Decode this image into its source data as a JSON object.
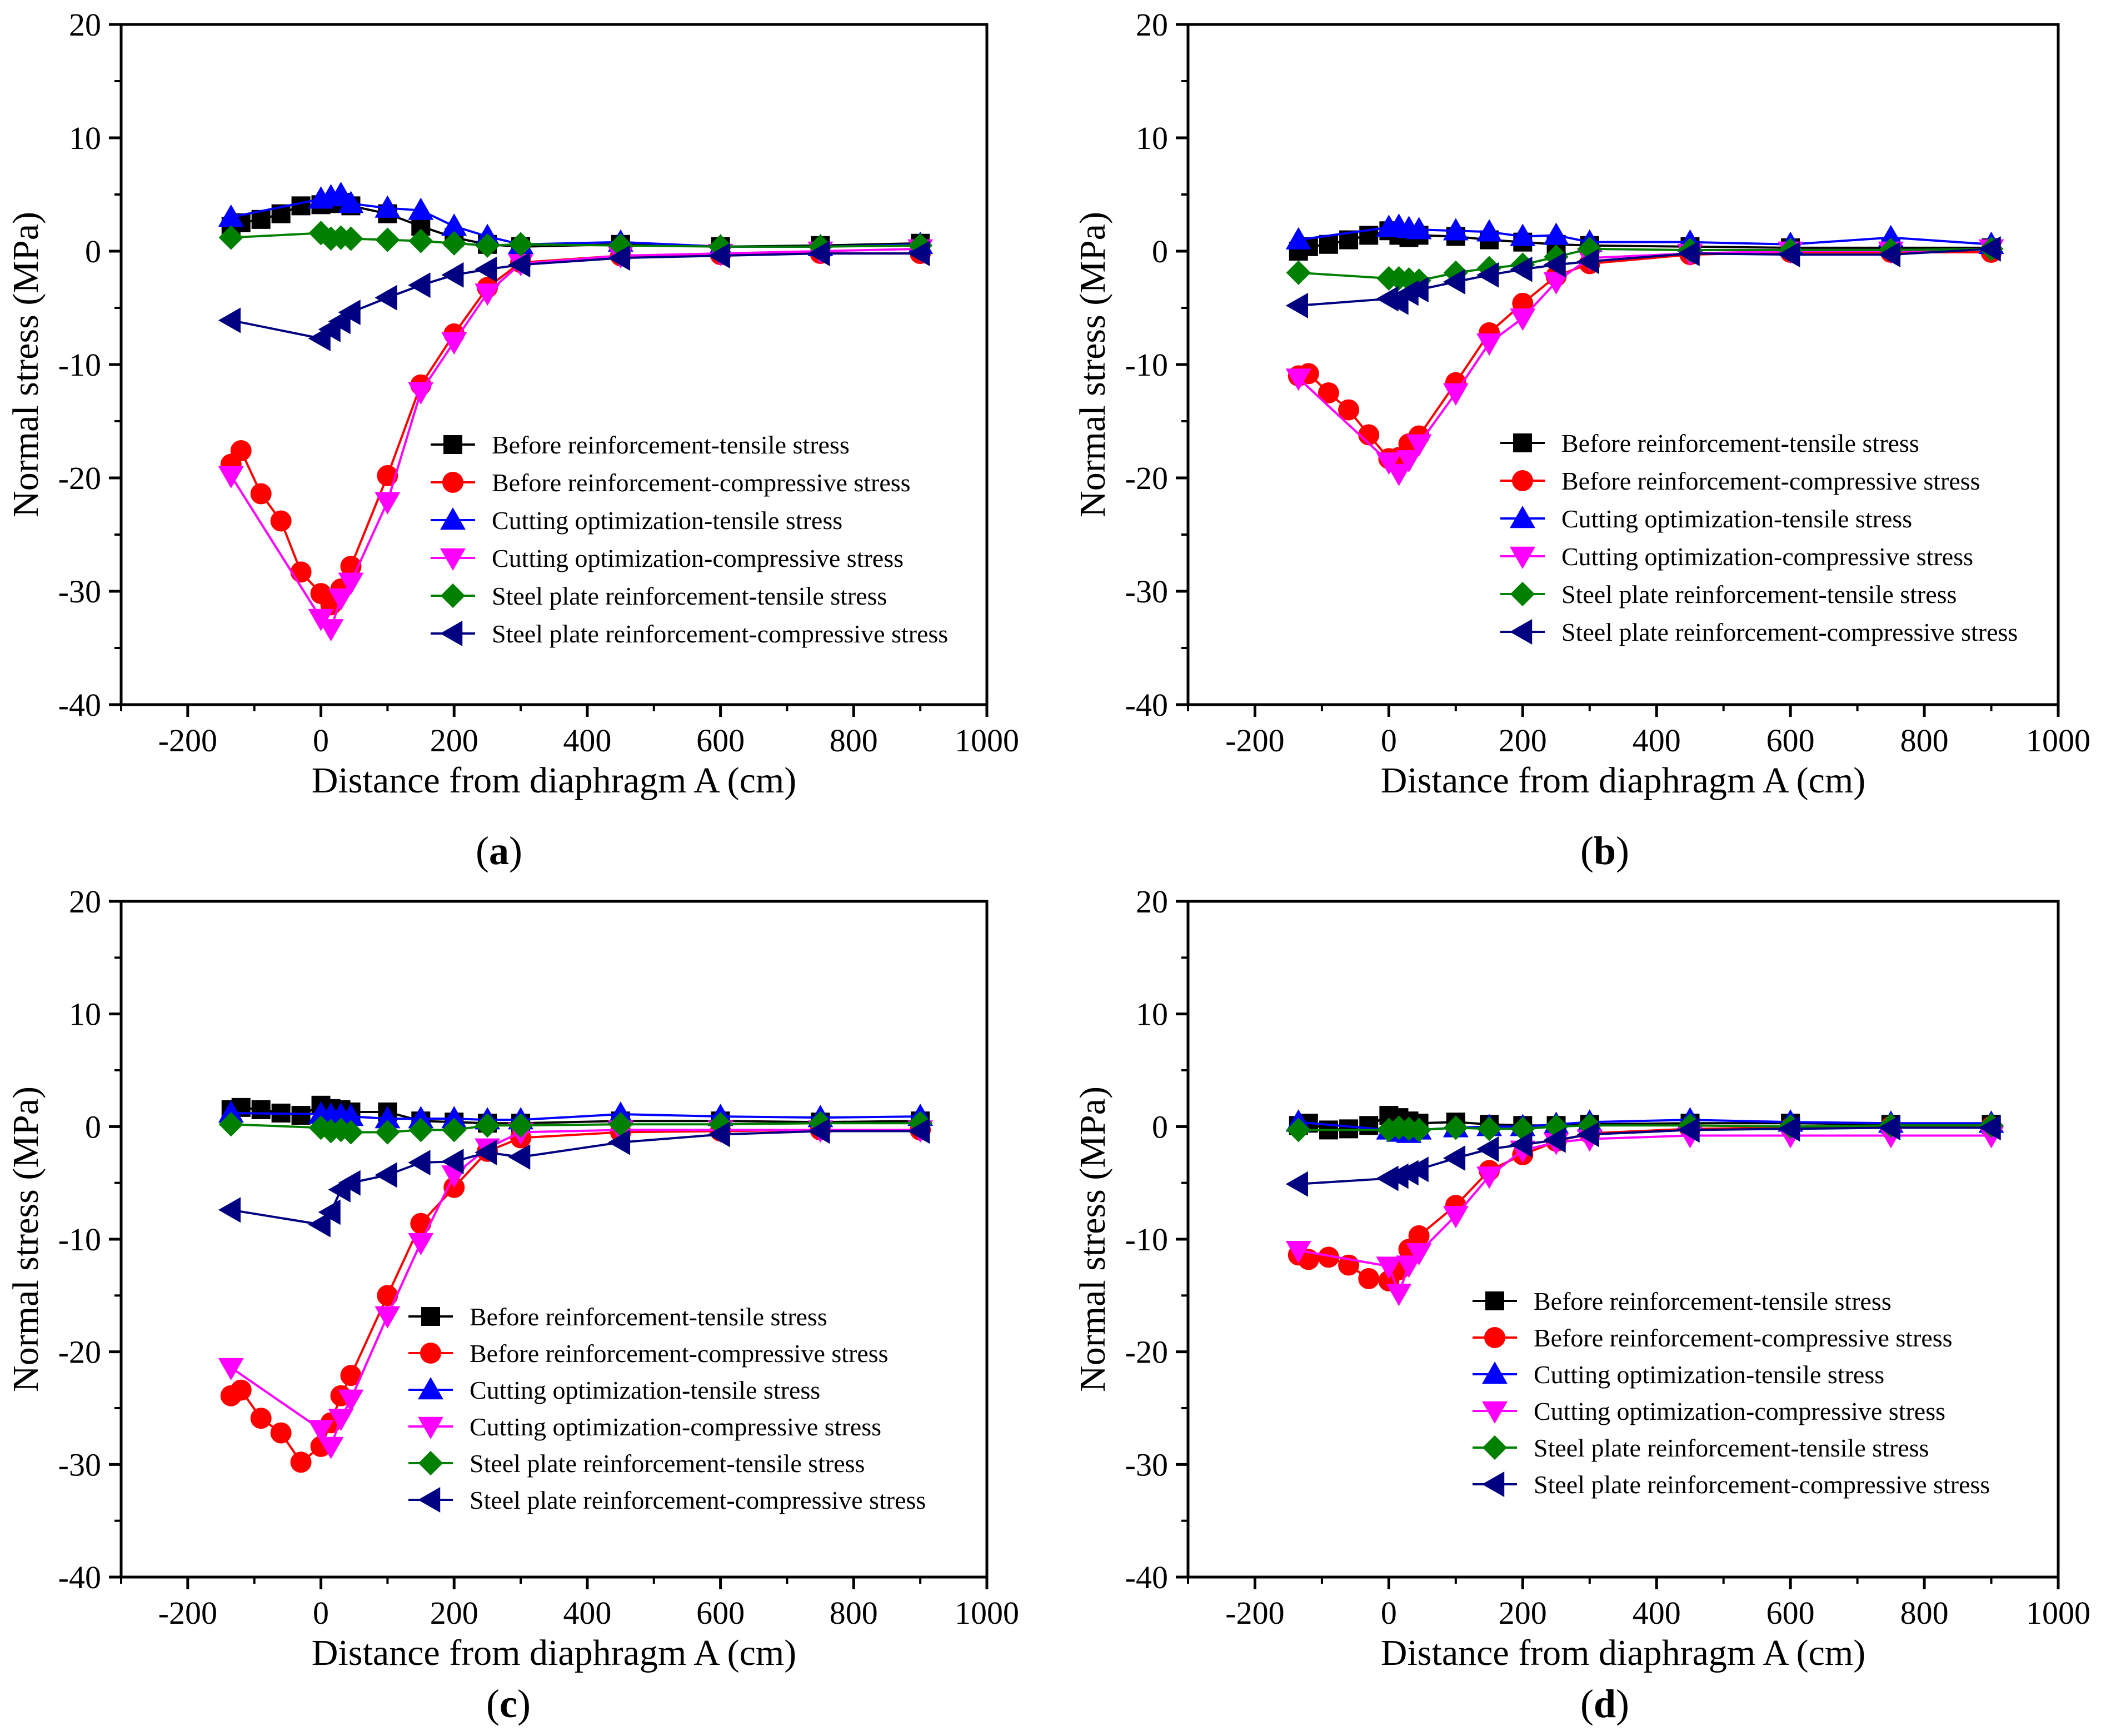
{
  "figure": {
    "xlabel": "Distance from diaphragm A (cm)",
    "ylabel": "Normal stress (MPa)",
    "xticks": [
      "-200",
      "0",
      "200",
      "400",
      "600",
      "800",
      "1000"
    ],
    "yticks": [
      "20",
      "10",
      "0",
      "-10",
      "-20",
      "-30",
      "-40"
    ]
  },
  "series_styles": [
    {
      "name": "Before reinforcement-tensile stress",
      "color": "#000000",
      "marker": "square"
    },
    {
      "name": "Before reinforcement-compressive stress",
      "color": "#ff0000",
      "marker": "circle"
    },
    {
      "name": "Cutting optimization-tensile stress",
      "color": "#0000ff",
      "marker": "triangle-up"
    },
    {
      "name": "Cutting optimization-compressive stress",
      "color": "#ff00ff",
      "marker": "triangle-down"
    },
    {
      "name": "Steel plate reinforcement-tensile stress",
      "color": "#008000",
      "marker": "diamond"
    },
    {
      "name": "Steel plate reinforcement-compressive stress",
      "color": "#000080",
      "marker": "triangle-left"
    }
  ],
  "chart_data": [
    {
      "type": "line",
      "panel_label": "a",
      "xlabel": "Distance from diaphragm A (cm)",
      "ylabel": "Normal stress (MPa)",
      "xlim": [
        -300,
        1000
      ],
      "ylim": [
        -40,
        20
      ],
      "legend": "lower-right",
      "series": [
        {
          "name": "Before reinforcement-tensile stress",
          "x": [
            -135,
            -120,
            -90,
            -60,
            -30,
            0,
            15,
            30,
            45,
            100,
            150,
            200,
            250,
            300,
            450,
            600,
            750,
            900
          ],
          "y": [
            2.2,
            2.5,
            2.8,
            3.3,
            4.0,
            4.1,
            4.2,
            4.3,
            4.0,
            3.3,
            2.2,
            1.2,
            0.6,
            0.4,
            0.6,
            0.4,
            0.5,
            0.7
          ]
        },
        {
          "name": "Before reinforcement-compressive stress",
          "x": [
            -135,
            -120,
            -90,
            -60,
            -30,
            0,
            15,
            30,
            45,
            100,
            150,
            200,
            250,
            300,
            450,
            600,
            750,
            900
          ],
          "y": [
            -18.8,
            -17.6,
            -21.4,
            -23.8,
            -28.3,
            -30.2,
            -31.2,
            -29.8,
            -27.8,
            -19.8,
            -11.8,
            -7.3,
            -3.2,
            -1.0,
            -0.4,
            -0.3,
            -0.2,
            -0.2
          ]
        },
        {
          "name": "Cutting optimization-tensile stress",
          "x": [
            -135,
            0,
            15,
            30,
            45,
            100,
            150,
            200,
            250,
            300,
            450,
            600,
            750,
            900
          ],
          "y": [
            3.0,
            4.6,
            4.8,
            5.0,
            4.2,
            3.8,
            3.6,
            2.2,
            1.3,
            0.6,
            0.8,
            0.4,
            0.4,
            0.6
          ]
        },
        {
          "name": "Cutting optimization-compressive stress",
          "x": [
            -135,
            0,
            15,
            30,
            45,
            100,
            150,
            200,
            250,
            300,
            450,
            600,
            750,
            900
          ],
          "y": [
            -19.8,
            -32.4,
            -33.3,
            -30.6,
            -29.2,
            -22.1,
            -12.4,
            -8.0,
            -3.7,
            -1.1,
            -0.4,
            -0.2,
            0.0,
            0.2
          ]
        },
        {
          "name": "Steel plate reinforcement-tensile stress",
          "x": [
            -135,
            0,
            15,
            30,
            45,
            100,
            150,
            200,
            250,
            300,
            450,
            600,
            750,
            900
          ],
          "y": [
            1.2,
            1.6,
            1.1,
            1.2,
            1.1,
            1.0,
            0.9,
            0.7,
            0.5,
            0.6,
            0.5,
            0.4,
            0.4,
            0.5
          ]
        },
        {
          "name": "Steel plate reinforcement-compressive stress",
          "x": [
            -135,
            0,
            15,
            30,
            45,
            100,
            150,
            200,
            250,
            300,
            450,
            600,
            750,
            900
          ],
          "y": [
            -6.1,
            -7.7,
            -6.9,
            -6.2,
            -5.4,
            -4.1,
            -3.0,
            -2.1,
            -1.6,
            -1.2,
            -0.6,
            -0.4,
            -0.2,
            -0.2
          ]
        }
      ]
    },
    {
      "type": "line",
      "panel_label": "b",
      "xlabel": "Distance from diaphragm A (cm)",
      "ylabel": "Normal stress (MPa)",
      "xlim": [
        -300,
        1000
      ],
      "ylim": [
        -40,
        20
      ],
      "legend": "lower-right",
      "series": [
        {
          "name": "Before reinforcement-tensile stress",
          "x": [
            -135,
            -120,
            -90,
            -60,
            -30,
            0,
            15,
            30,
            45,
            100,
            150,
            200,
            250,
            300,
            450,
            600,
            750,
            900
          ],
          "y": [
            0.0,
            0.4,
            0.6,
            1.0,
            1.4,
            1.8,
            1.4,
            1.2,
            1.4,
            1.3,
            1.0,
            0.8,
            0.6,
            0.5,
            0.4,
            0.3,
            0.3,
            0.3
          ]
        },
        {
          "name": "Before reinforcement-compressive stress",
          "x": [
            -135,
            -120,
            -90,
            -60,
            -30,
            0,
            15,
            30,
            45,
            100,
            150,
            200,
            250,
            300,
            450,
            600,
            750,
            900
          ],
          "y": [
            -11.0,
            -10.8,
            -12.5,
            -14.0,
            -16.2,
            -18.3,
            -18.2,
            -17.0,
            -16.3,
            -11.6,
            -7.2,
            -4.6,
            -2.2,
            -1.1,
            -0.3,
            -0.1,
            -0.1,
            -0.1
          ]
        },
        {
          "name": "Cutting optimization-tensile stress",
          "x": [
            -135,
            0,
            15,
            30,
            45,
            100,
            150,
            200,
            250,
            300,
            450,
            600,
            750,
            900
          ],
          "y": [
            1.0,
            2.1,
            2.2,
            2.0,
            1.9,
            1.8,
            1.7,
            1.3,
            1.4,
            0.8,
            0.8,
            0.6,
            1.2,
            0.6
          ]
        },
        {
          "name": "Cutting optimization-compressive stress",
          "x": [
            -135,
            0,
            15,
            30,
            45,
            100,
            150,
            200,
            250,
            300,
            450,
            600,
            750,
            900
          ],
          "y": [
            -11.2,
            -18.6,
            -19.6,
            -18.4,
            -17.0,
            -12.5,
            -8.1,
            -5.9,
            -2.7,
            -0.6,
            -0.2,
            0.0,
            0.0,
            0.2
          ]
        },
        {
          "name": "Steel plate reinforcement-tensile stress",
          "x": [
            -135,
            0,
            15,
            30,
            45,
            100,
            150,
            200,
            250,
            300,
            450,
            600,
            750,
            900
          ],
          "y": [
            -1.9,
            -2.4,
            -2.4,
            -2.5,
            -2.6,
            -1.9,
            -1.5,
            -1.2,
            -0.5,
            0.2,
            0.1,
            0.1,
            0.1,
            0.2
          ]
        },
        {
          "name": "Steel plate reinforcement-compressive stress",
          "x": [
            -135,
            0,
            15,
            30,
            45,
            100,
            150,
            200,
            250,
            300,
            450,
            600,
            750,
            900
          ],
          "y": [
            -4.8,
            -4.2,
            -4.5,
            -3.7,
            -3.4,
            -2.7,
            -2.1,
            -1.6,
            -1.2,
            -0.9,
            -0.2,
            -0.3,
            -0.3,
            0.2
          ]
        }
      ]
    },
    {
      "type": "line",
      "panel_label": "c",
      "xlabel": "Distance from diaphragm A (cm)",
      "ylabel": "Normal stress (MPa)",
      "xlim": [
        -300,
        1000
      ],
      "ylim": [
        -40,
        20
      ],
      "legend": "lower-right",
      "series": [
        {
          "name": "Before reinforcement-tensile stress",
          "x": [
            -135,
            -120,
            -90,
            -60,
            -30,
            0,
            15,
            30,
            45,
            100,
            150,
            200,
            250,
            300,
            450,
            600,
            750,
            900
          ],
          "y": [
            1.5,
            1.7,
            1.5,
            1.2,
            1.0,
            1.9,
            1.6,
            1.5,
            1.3,
            1.3,
            0.5,
            0.4,
            0.3,
            0.3,
            0.5,
            0.5,
            0.4,
            0.5
          ]
        },
        {
          "name": "Before reinforcement-compressive stress",
          "x": [
            -135,
            -120,
            -90,
            -60,
            -30,
            0,
            15,
            30,
            45,
            100,
            150,
            200,
            250,
            300,
            450,
            600,
            750,
            900
          ],
          "y": [
            -23.9,
            -23.4,
            -25.9,
            -27.2,
            -29.8,
            -28.4,
            -26.3,
            -23.9,
            -22.1,
            -15.0,
            -8.6,
            -5.4,
            -2.2,
            -1.0,
            -0.5,
            -0.4,
            -0.3,
            -0.3
          ]
        },
        {
          "name": "Cutting optimization-tensile stress",
          "x": [
            -135,
            0,
            15,
            30,
            45,
            100,
            150,
            200,
            250,
            300,
            450,
            600,
            750,
            900
          ],
          "y": [
            1.2,
            1.1,
            1.0,
            1.0,
            0.9,
            0.7,
            0.7,
            0.7,
            0.6,
            0.6,
            1.1,
            0.9,
            0.8,
            0.9
          ]
        },
        {
          "name": "Cutting optimization-compressive stress",
          "x": [
            -135,
            0,
            15,
            30,
            45,
            100,
            150,
            200,
            250,
            300,
            450,
            600,
            750,
            900
          ],
          "y": [
            -21.4,
            -26.9,
            -28.4,
            -25.9,
            -24.2,
            -16.8,
            -10.3,
            -4.3,
            -1.9,
            -0.5,
            -0.3,
            -0.3,
            -0.3,
            -0.3
          ]
        },
        {
          "name": "Steel plate reinforcement-tensile stress",
          "x": [
            -135,
            0,
            15,
            30,
            45,
            100,
            150,
            200,
            250,
            300,
            450,
            600,
            750,
            900
          ],
          "y": [
            0.2,
            -0.1,
            -0.4,
            -0.3,
            -0.5,
            -0.5,
            -0.3,
            -0.3,
            0.1,
            0.1,
            0.2,
            0.2,
            0.3,
            0.3
          ]
        },
        {
          "name": "Steel plate reinforcement-compressive stress",
          "x": [
            -135,
            0,
            15,
            30,
            45,
            100,
            150,
            200,
            250,
            300,
            450,
            600,
            750,
            900
          ],
          "y": [
            -7.4,
            -8.7,
            -7.6,
            -5.6,
            -5.0,
            -4.3,
            -3.2,
            -3.1,
            -2.3,
            -2.7,
            -1.4,
            -0.7,
            -0.4,
            -0.4
          ]
        }
      ]
    },
    {
      "type": "line",
      "panel_label": "d",
      "xlabel": "Distance from diaphragm A (cm)",
      "ylabel": "Normal stress (MPa)",
      "xlim": [
        -300,
        1000
      ],
      "ylim": [
        -40,
        20
      ],
      "legend": "lower-right",
      "series": [
        {
          "name": "Before reinforcement-tensile stress",
          "x": [
            -135,
            -120,
            -90,
            -60,
            -30,
            0,
            15,
            30,
            45,
            100,
            150,
            200,
            250,
            300,
            450,
            600,
            750,
            900
          ],
          "y": [
            0.1,
            0.3,
            -0.3,
            -0.2,
            0.1,
            1.0,
            0.8,
            0.5,
            0.3,
            0.4,
            0.2,
            0.1,
            0.1,
            0.2,
            0.3,
            0.3,
            0.2,
            0.2
          ]
        },
        {
          "name": "Before reinforcement-compressive stress",
          "x": [
            -135,
            -120,
            -90,
            -60,
            -30,
            0,
            15,
            30,
            45,
            100,
            150,
            200,
            250,
            300,
            450,
            600,
            750,
            900
          ],
          "y": [
            -11.4,
            -11.8,
            -11.6,
            -12.3,
            -13.5,
            -13.7,
            -12.7,
            -10.9,
            -9.7,
            -7.0,
            -3.9,
            -2.5,
            -1.3,
            -0.6,
            -0.2,
            -0.1,
            0.0,
            0.0
          ]
        },
        {
          "name": "Cutting optimization-tensile stress",
          "x": [
            -135,
            0,
            15,
            30,
            45,
            100,
            150,
            200,
            250,
            300,
            450,
            600,
            750,
            900
          ],
          "y": [
            0.4,
            -0.3,
            -0.5,
            -0.6,
            -0.3,
            -0.1,
            0.0,
            0.0,
            0.2,
            0.4,
            0.6,
            0.4,
            0.3,
            0.3
          ]
        },
        {
          "name": "Cutting optimization-compressive stress",
          "x": [
            -135,
            0,
            15,
            30,
            45,
            100,
            150,
            200,
            250,
            300,
            450,
            600,
            750,
            900
          ],
          "y": [
            -11.0,
            -12.4,
            -14.8,
            -12.3,
            -11.2,
            -7.9,
            -4.4,
            -2.1,
            -1.4,
            -1.1,
            -0.8,
            -0.8,
            -0.8,
            -0.8
          ]
        },
        {
          "name": "Steel plate reinforcement-tensile stress",
          "x": [
            -135,
            0,
            15,
            30,
            45,
            100,
            150,
            200,
            250,
            300,
            450,
            600,
            750,
            900
          ],
          "y": [
            -0.3,
            -0.3,
            -0.1,
            -0.2,
            -0.3,
            -0.1,
            -0.2,
            -0.2,
            0.0,
            0.1,
            0.1,
            0.0,
            0.1,
            0.1
          ]
        },
        {
          "name": "Steel plate reinforcement-compressive stress",
          "x": [
            -135,
            0,
            15,
            30,
            45,
            100,
            150,
            200,
            250,
            300,
            450,
            600,
            750,
            900
          ],
          "y": [
            -5.1,
            -4.6,
            -4.4,
            -4.1,
            -3.8,
            -2.8,
            -2.0,
            -1.6,
            -1.2,
            -0.7,
            -0.3,
            -0.2,
            -0.1,
            -0.1
          ]
        }
      ]
    }
  ]
}
